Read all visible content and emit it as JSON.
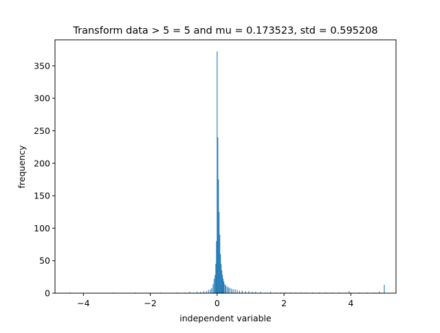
{
  "chart_data": {
    "type": "bar",
    "title": "Transform data > 5 = 5 and mu = 0.173523,  std = 0.595208",
    "xlabel": "independent variable",
    "ylabel": "frequency",
    "xlim": [
      -4.85,
      5.35
    ],
    "ylim": [
      0,
      390
    ],
    "xticks": [
      -4,
      -2,
      0,
      2,
      4
    ],
    "xtick_labels": [
      "−4",
      "−2",
      "0",
      "2",
      "4"
    ],
    "yticks": [
      0,
      50,
      100,
      150,
      200,
      250,
      300,
      350
    ],
    "ytick_labels": [
      "0",
      "50",
      "100",
      "150",
      "200",
      "250",
      "300",
      "350"
    ],
    "bar_color": "#1f77b4",
    "bins": [
      {
        "x": -4.4,
        "y": 1
      },
      {
        "x": -3.1,
        "y": 1
      },
      {
        "x": -2.45,
        "y": 1
      },
      {
        "x": -1.7,
        "y": 1
      },
      {
        "x": -1.2,
        "y": 1
      },
      {
        "x": -0.95,
        "y": 1
      },
      {
        "x": -0.82,
        "y": 2
      },
      {
        "x": -0.7,
        "y": 1
      },
      {
        "x": -0.6,
        "y": 2
      },
      {
        "x": -0.5,
        "y": 2
      },
      {
        "x": -0.4,
        "y": 3
      },
      {
        "x": -0.32,
        "y": 3
      },
      {
        "x": -0.26,
        "y": 5
      },
      {
        "x": -0.2,
        "y": 6
      },
      {
        "x": -0.16,
        "y": 8
      },
      {
        "x": -0.12,
        "y": 14
      },
      {
        "x": -0.09,
        "y": 22
      },
      {
        "x": -0.06,
        "y": 28
      },
      {
        "x": -0.04,
        "y": 45
      },
      {
        "x": -0.02,
        "y": 80
      },
      {
        "x": 0.0,
        "y": 372
      },
      {
        "x": 0.02,
        "y": 240
      },
      {
        "x": 0.04,
        "y": 175
      },
      {
        "x": 0.06,
        "y": 125
      },
      {
        "x": 0.08,
        "y": 90
      },
      {
        "x": 0.1,
        "y": 60
      },
      {
        "x": 0.12,
        "y": 45
      },
      {
        "x": 0.14,
        "y": 35
      },
      {
        "x": 0.16,
        "y": 28
      },
      {
        "x": 0.18,
        "y": 22
      },
      {
        "x": 0.2,
        "y": 18
      },
      {
        "x": 0.23,
        "y": 14
      },
      {
        "x": 0.26,
        "y": 12
      },
      {
        "x": 0.3,
        "y": 10
      },
      {
        "x": 0.34,
        "y": 9
      },
      {
        "x": 0.38,
        "y": 8
      },
      {
        "x": 0.43,
        "y": 7
      },
      {
        "x": 0.48,
        "y": 6
      },
      {
        "x": 0.54,
        "y": 6
      },
      {
        "x": 0.6,
        "y": 5
      },
      {
        "x": 0.67,
        "y": 4
      },
      {
        "x": 0.75,
        "y": 4
      },
      {
        "x": 0.85,
        "y": 3
      },
      {
        "x": 0.95,
        "y": 3
      },
      {
        "x": 1.05,
        "y": 2
      },
      {
        "x": 1.15,
        "y": 2
      },
      {
        "x": 1.3,
        "y": 2
      },
      {
        "x": 1.45,
        "y": 1
      },
      {
        "x": 1.6,
        "y": 2
      },
      {
        "x": 1.75,
        "y": 1
      },
      {
        "x": 1.9,
        "y": 1
      },
      {
        "x": 2.05,
        "y": 1
      },
      {
        "x": 2.2,
        "y": 1
      },
      {
        "x": 2.35,
        "y": 1
      },
      {
        "x": 2.5,
        "y": 1
      },
      {
        "x": 2.65,
        "y": 1
      },
      {
        "x": 2.85,
        "y": 1
      },
      {
        "x": 3.05,
        "y": 1
      },
      {
        "x": 3.25,
        "y": 1
      },
      {
        "x": 3.45,
        "y": 1
      },
      {
        "x": 3.65,
        "y": 1
      },
      {
        "x": 3.85,
        "y": 1
      },
      {
        "x": 3.95,
        "y": 3
      },
      {
        "x": 4.25,
        "y": 1
      },
      {
        "x": 4.5,
        "y": 1
      },
      {
        "x": 4.7,
        "y": 1
      },
      {
        "x": 4.85,
        "y": 2
      },
      {
        "x": 5.0,
        "y": 13
      }
    ],
    "bin_width": 0.018,
    "grid": false,
    "legend": "none"
  }
}
